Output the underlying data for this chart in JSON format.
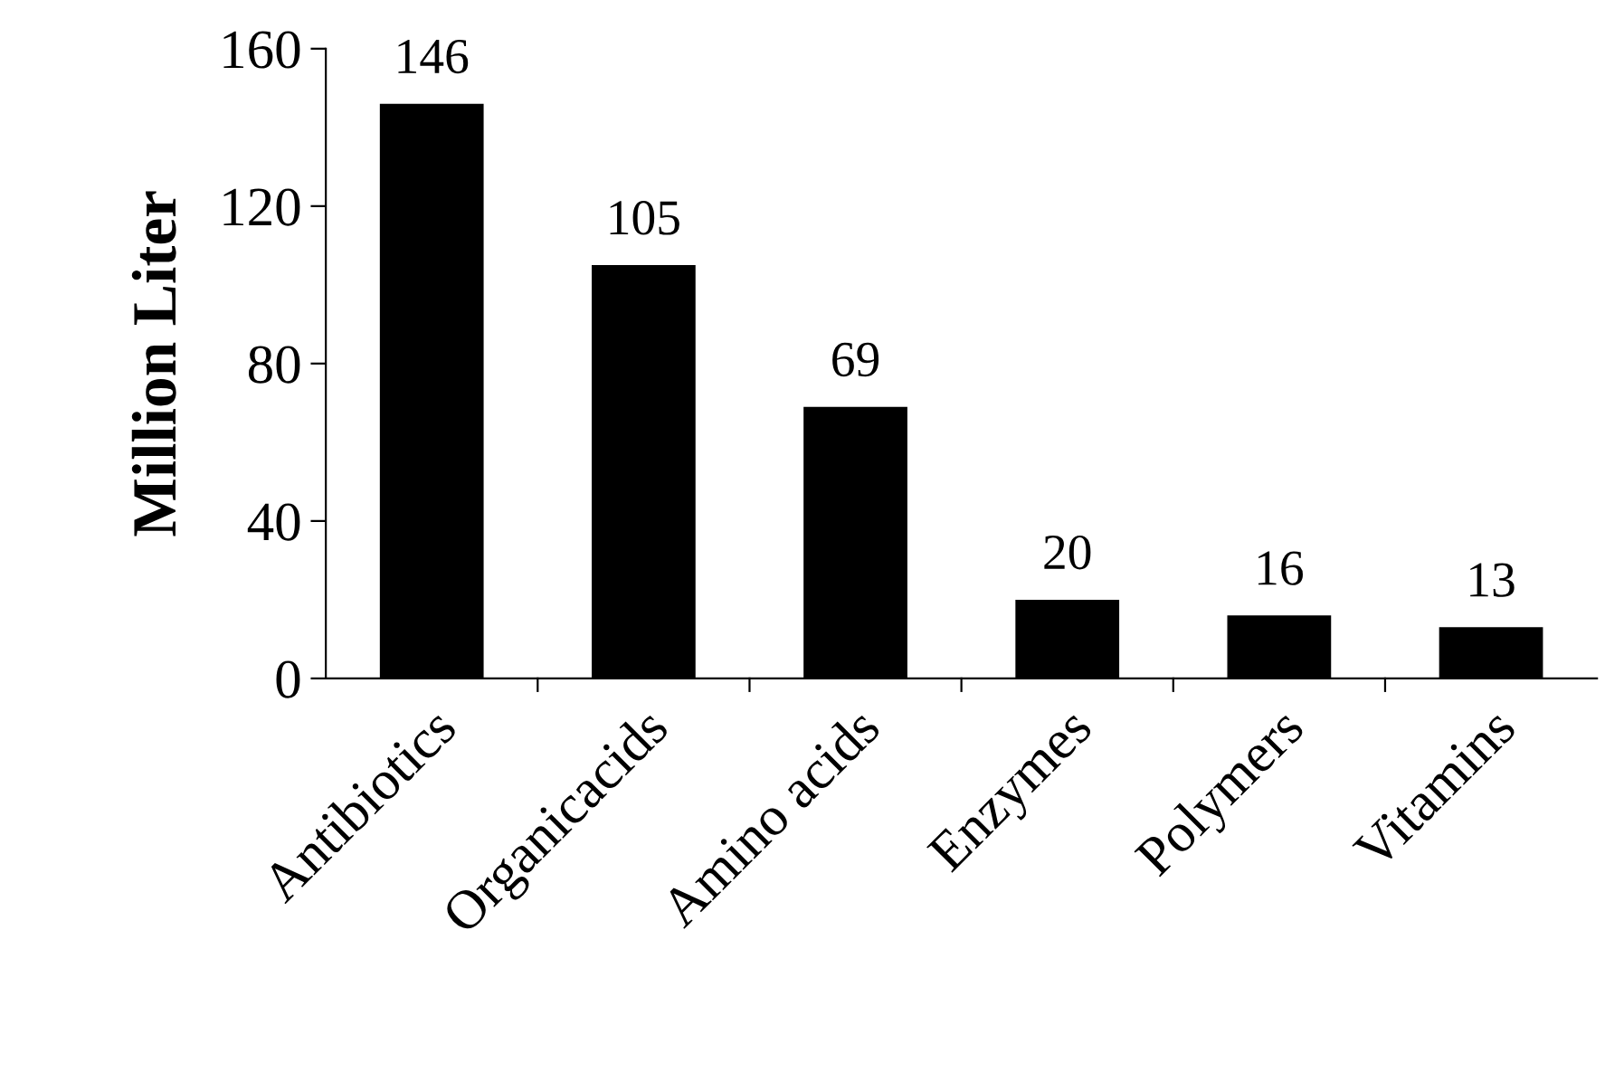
{
  "chart_data": {
    "type": "bar",
    "ylabel": "Million Liter",
    "categories": [
      "Antibiotics",
      "Organicacids",
      "Amino acids",
      "Enzymes",
      "Polymers",
      "Vitamins"
    ],
    "values": [
      146,
      105,
      69,
      20,
      16,
      13
    ],
    "color": "#000000",
    "ylim": [
      0,
      160
    ],
    "yticks": [
      0,
      40,
      80,
      120,
      160
    ],
    "data_labels": true,
    "grid": false,
    "legend": false
  }
}
